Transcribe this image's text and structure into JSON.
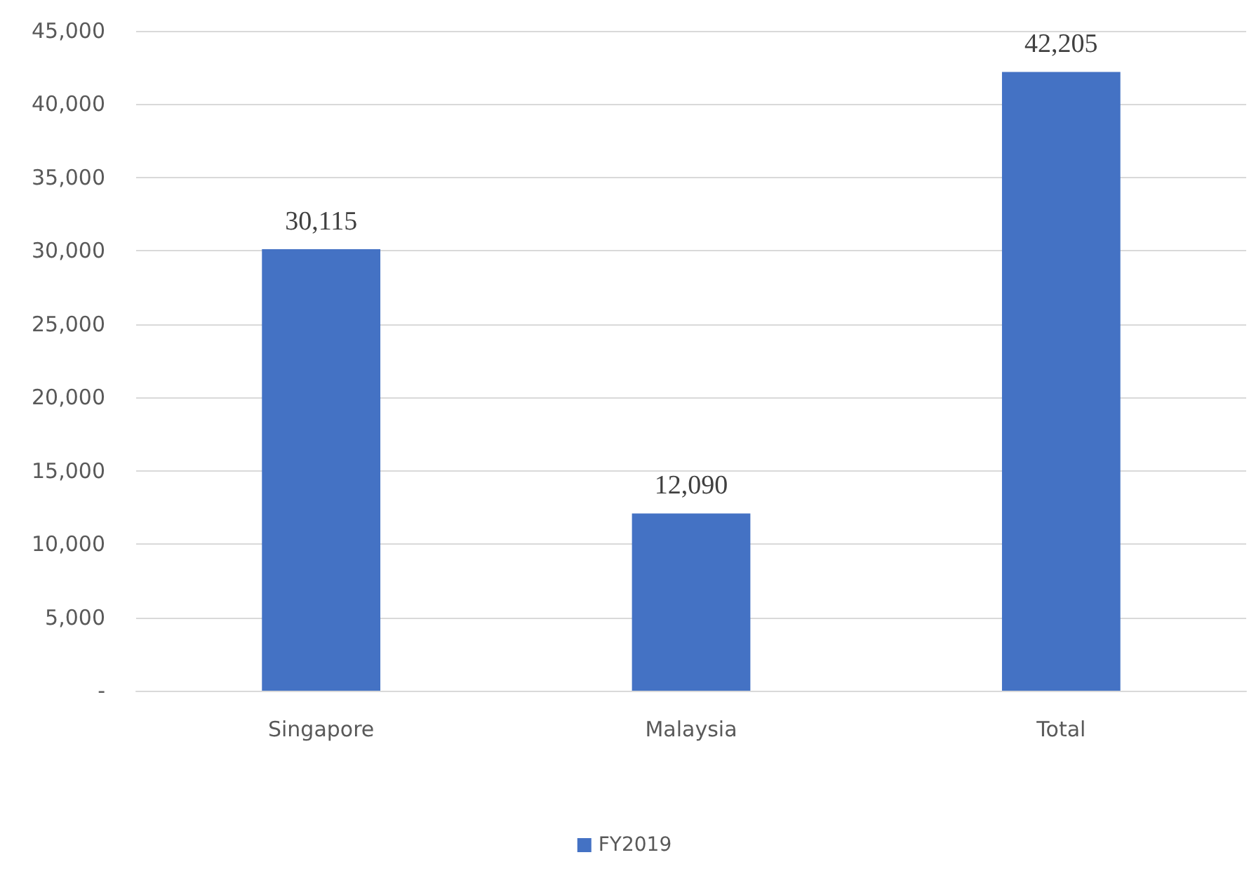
{
  "chart_data": {
    "type": "bar",
    "categories": [
      "Singapore",
      "Malaysia",
      "Total"
    ],
    "series": [
      {
        "name": "FY2019",
        "color": "#4472c4",
        "values": [
          30115,
          12090,
          42205
        ],
        "value_labels": [
          "30,115",
          "12,090",
          "42,205"
        ]
      }
    ],
    "ylim": [
      0,
      45000
    ],
    "yticks": [
      {
        "value": 0,
        "label": "-"
      },
      {
        "value": 5000,
        "label": "5,000"
      },
      {
        "value": 10000,
        "label": "10,000"
      },
      {
        "value": 15000,
        "label": "15,000"
      },
      {
        "value": 20000,
        "label": "20,000"
      },
      {
        "value": 25000,
        "label": "25,000"
      },
      {
        "value": 30000,
        "label": "30,000"
      },
      {
        "value": 35000,
        "label": "35,000"
      },
      {
        "value": 40000,
        "label": "40,000"
      },
      {
        "value": 45000,
        "label": "45,000"
      }
    ],
    "grid": "y",
    "legend": "bottom"
  }
}
